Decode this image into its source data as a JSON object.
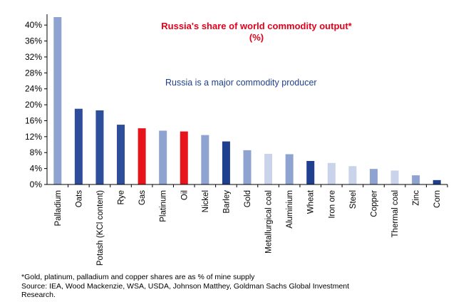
{
  "chart_data": {
    "type": "bar",
    "title": "Russia's share of world commodity output*",
    "subtitle": "(%)",
    "annotation": "Russia is a major commodity producer",
    "xlabel": "",
    "ylabel": "",
    "ylim": [
      0,
      42
    ],
    "yticks": [
      "0%",
      "4%",
      "8%",
      "12%",
      "16%",
      "20%",
      "24%",
      "28%",
      "32%",
      "36%",
      "40%"
    ],
    "grid": false,
    "categories": [
      "Palladium",
      "Oats",
      "Potash (KCl content)",
      "Rye",
      "Gas",
      "Platinum",
      "Oil",
      "Nickel",
      "Barley",
      "Gold",
      "Metallurgical coal",
      "Aluminium",
      "Wheat",
      "Iron ore",
      "Steel",
      "Copper",
      "Thermal coal",
      "Zinc",
      "Corn"
    ],
    "values": [
      42,
      19,
      18.6,
      15,
      14.1,
      13.5,
      13.3,
      12.4,
      10.8,
      8.6,
      7.7,
      7.6,
      5.9,
      5.4,
      4.6,
      3.9,
      3.5,
      2.3,
      1.1
    ],
    "colors": [
      "#8ea3d0",
      "#2e4d9b",
      "#2e4d9b",
      "#2e4d9b",
      "#e8141b",
      "#8ea3d0",
      "#e8141b",
      "#8ea3d0",
      "#1f3f8f",
      "#8ea3d0",
      "#c9d3ea",
      "#8ea3d0",
      "#1f3f8f",
      "#c9d3ea",
      "#c9d3ea",
      "#8ea3d0",
      "#c9d3ea",
      "#8ea3d0",
      "#1f3f8f"
    ]
  },
  "footnote": {
    "line1": "*Gold, platinum, palladium and copper shares are as % of mine supply",
    "line2": "Source: IEA, Wood Mackenzie, WSA, USDA, Johnson Matthey, Goldman Sachs Global Investment",
    "line3": "Research."
  }
}
